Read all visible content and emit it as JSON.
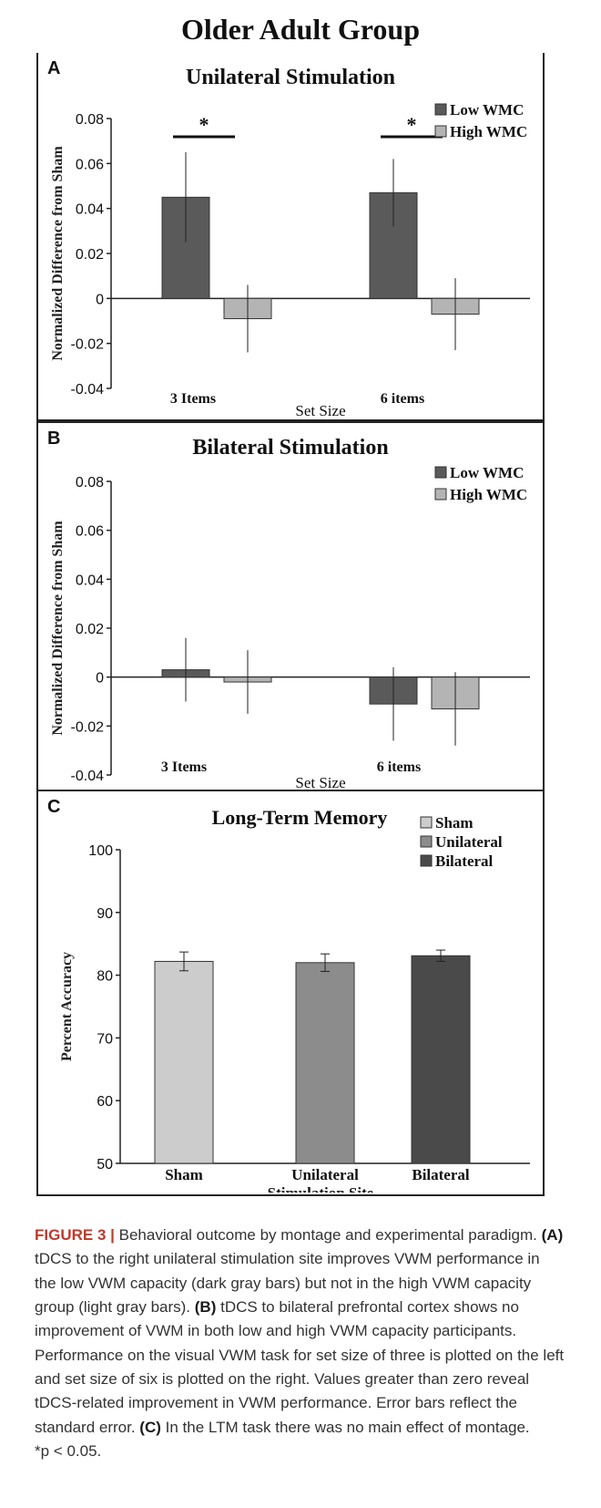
{
  "figure": {
    "title": "Older Adult Group"
  },
  "chart_data": [
    {
      "panel": "A",
      "type": "bar",
      "title": "Unilateral Stimulation",
      "xlabel": "Set Size",
      "ylabel": "Normalized Difference from Sham",
      "categories": [
        "3 Items",
        "6 items"
      ],
      "ylim": [
        -0.04,
        0.08
      ],
      "yticks": [
        "-0.04",
        "-0.02",
        "0",
        "0.02",
        "0.04",
        "0.06",
        "0.08"
      ],
      "series": [
        {
          "name": "Low WMC",
          "color": "#5a5a5a",
          "values": [
            0.045,
            0.047
          ],
          "errors": [
            0.02,
            0.015
          ]
        },
        {
          "name": "High WMC",
          "color": "#b4b4b4",
          "values": [
            -0.009,
            -0.007
          ],
          "errors": [
            0.015,
            0.016
          ]
        }
      ],
      "significance": [
        "*",
        "*"
      ],
      "legend": "top-right"
    },
    {
      "panel": "B",
      "type": "bar",
      "title": "Bilateral Stimulation",
      "xlabel": "Set Size",
      "ylabel": "Normalized Difference from Sham",
      "categories": [
        "3 Items",
        "6 items"
      ],
      "ylim": [
        -0.04,
        0.08
      ],
      "yticks": [
        "-0.04",
        "-0.02",
        "0",
        "0.02",
        "0.04",
        "0.06",
        "0.08"
      ],
      "series": [
        {
          "name": "Low WMC",
          "color": "#5a5a5a",
          "values": [
            0.003,
            -0.011
          ],
          "errors": [
            0.013,
            0.015
          ]
        },
        {
          "name": "High WMC",
          "color": "#b4b4b4",
          "values": [
            -0.002,
            -0.013
          ],
          "errors": [
            0.013,
            0.015
          ]
        }
      ],
      "legend": "top-right"
    },
    {
      "panel": "C",
      "type": "bar",
      "title": "Long-Term Memory",
      "xlabel": "Stimulation Site",
      "ylabel": "Percent Accuracy",
      "categories": [
        "Sham",
        "Unilateral",
        "Bilateral"
      ],
      "ylim": [
        50,
        100
      ],
      "yticks": [
        "50",
        "60",
        "70",
        "80",
        "90",
        "100"
      ],
      "series": [
        {
          "name": "Sham",
          "color": "#cccccc"
        },
        {
          "name": "Unilateral",
          "color": "#8c8c8c"
        },
        {
          "name": "Bilateral",
          "color": "#4a4a4a"
        }
      ],
      "values": [
        82.2,
        82.0,
        83.1
      ],
      "errors": [
        1.5,
        1.4,
        0.9
      ],
      "legend": "top-right"
    }
  ],
  "caption": {
    "label": "FIGURE 3 |",
    "intro": " Behavioral outcome by montage and experimental paradigm.",
    "a_tag": "(A)",
    "a_text": " tDCS to the right unilateral stimulation site improves VWM performance in the low VWM capacity (dark gray bars) but not in the high VWM capacity group (light gray bars).",
    "b_tag": "(B)",
    "b_text": " tDCS to bilateral prefrontal cortex shows no improvement of VWM in both low and high VWM capacity participants. Performance on the visual VWM task for set size of three is plotted on the left and set size of six is plotted on the right. Values greater than zero reveal tDCS-related improvement in VWM performance. Error bars reflect the standard error.",
    "c_tag": "(C)",
    "c_text": " In the LTM task there was no main effect of montage.",
    "footnote": "*p < 0.05."
  }
}
